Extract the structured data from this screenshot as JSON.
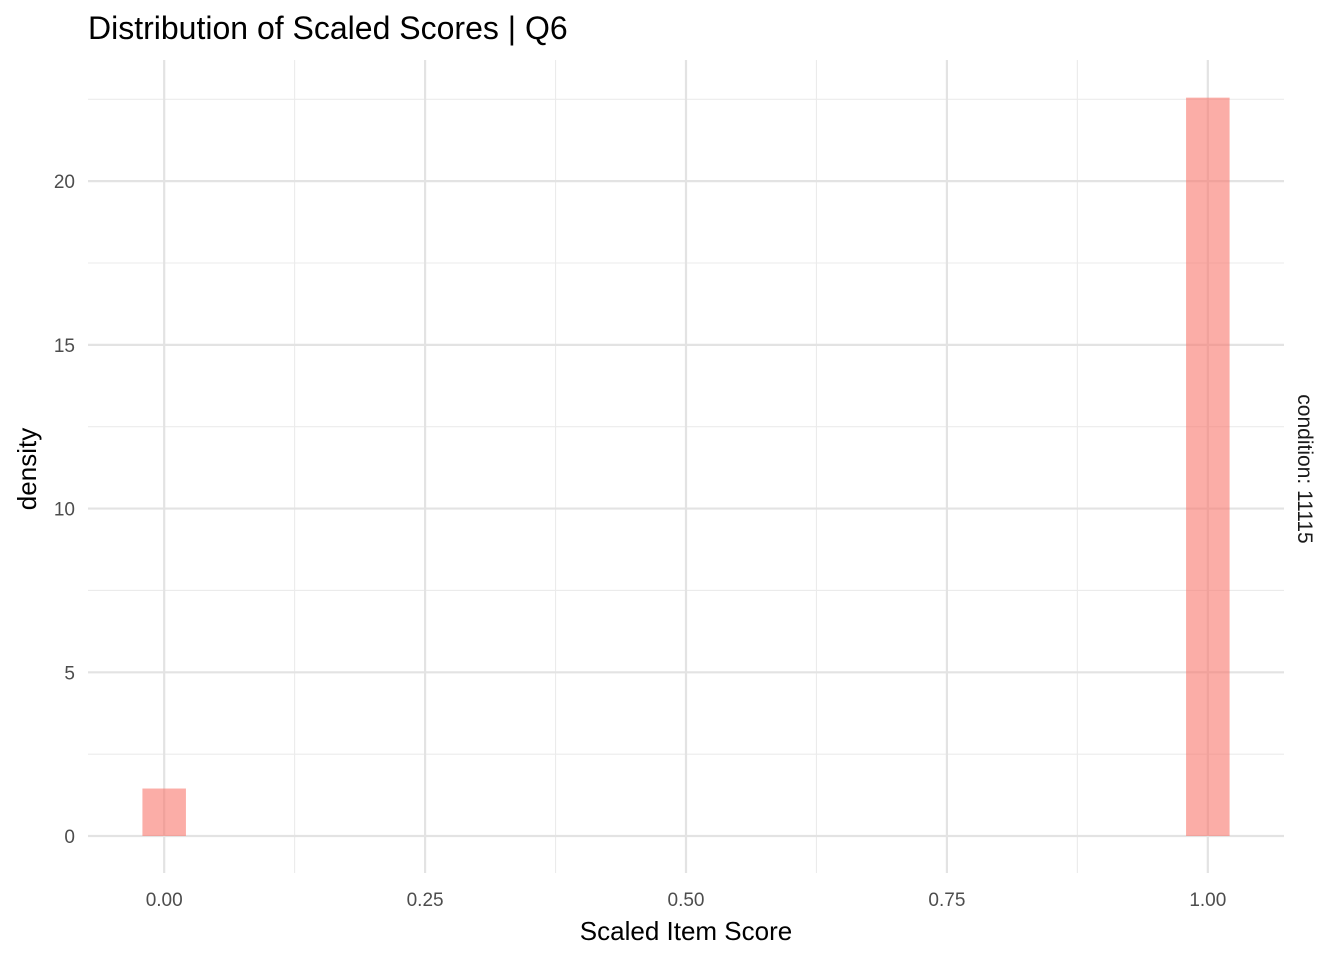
{
  "chart_data": {
    "type": "bar",
    "title": "Distribution of Scaled Scores | Q6",
    "xlabel": "Scaled Item Score",
    "ylabel": "density",
    "facet_label": "condition: 11115",
    "x_ticks": [
      0,
      0.25,
      0.5,
      0.75,
      1
    ],
    "x_tick_labels": [
      "0.00",
      "0.25",
      "0.50",
      "0.75",
      "1.00"
    ],
    "y_ticks": [
      0,
      5,
      10,
      15,
      20
    ],
    "y_tick_labels": [
      "0",
      "5",
      "10",
      "15",
      "20"
    ],
    "xlim": [
      -0.073,
      1.073
    ],
    "ylim": [
      -1.13,
      23.7
    ],
    "grid": true,
    "bin_width": 0.0417,
    "bars": [
      {
        "x": 0.0,
        "density": 1.45
      },
      {
        "x": 1.0,
        "density": 22.55
      }
    ],
    "fill_color": "#F8766D",
    "fill_opacity": 0.6
  }
}
